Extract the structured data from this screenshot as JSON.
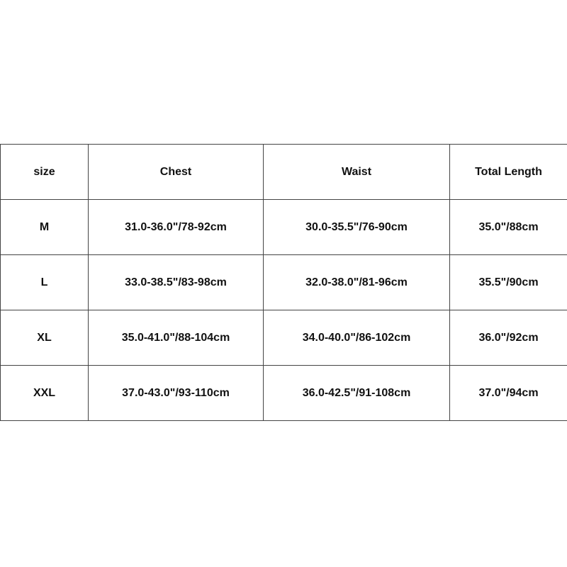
{
  "table": {
    "header": [
      "size",
      "Chest",
      "Waist",
      "Total Length"
    ],
    "rows": [
      [
        "M",
        "31.0-36.0\"/78-92cm",
        "30.0-35.5\"/76-90cm",
        "35.0\"/88cm"
      ],
      [
        "L",
        "33.0-38.5\"/83-98cm",
        "32.0-38.0\"/81-96cm",
        "35.5\"/90cm"
      ],
      [
        "XL",
        "35.0-41.0\"/88-104cm",
        "34.0-40.0\"/86-102cm",
        "36.0\"/92cm"
      ],
      [
        "XXL",
        "37.0-43.0\"/93-110cm",
        "36.0-42.5\"/91-108cm",
        "37.0\"/94cm"
      ]
    ]
  }
}
